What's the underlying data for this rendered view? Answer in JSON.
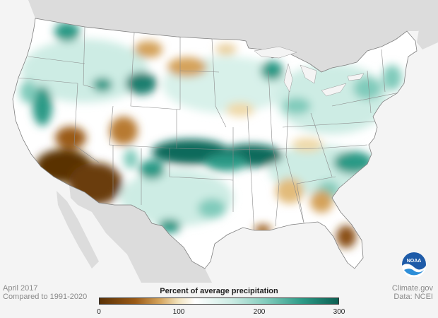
{
  "map": {
    "period": "April 2017",
    "baseline": "Compared to 1991-2020",
    "credit_site": "Climate.gov",
    "credit_data": "Data: NCEI"
  },
  "legend": {
    "title": "Percent of average precipitation",
    "ticks": [
      "0",
      "100",
      "200",
      "300"
    ],
    "tick_values": [
      0,
      100,
      200,
      300
    ],
    "range": [
      0,
      300
    ],
    "colors": [
      "#5a3206",
      "#9a5a16",
      "#d4a25a",
      "#f2e3bd",
      "#ffffff",
      "#cdece4",
      "#80cbbb",
      "#2c9a86",
      "#0c5f52"
    ]
  },
  "logo": {
    "text": "NOAA"
  },
  "colors": {
    "land": "#ffffff",
    "surroundings": "#dcdcdc",
    "ocean": "#f4f4f4",
    "borders": "#7f7f7f"
  }
}
